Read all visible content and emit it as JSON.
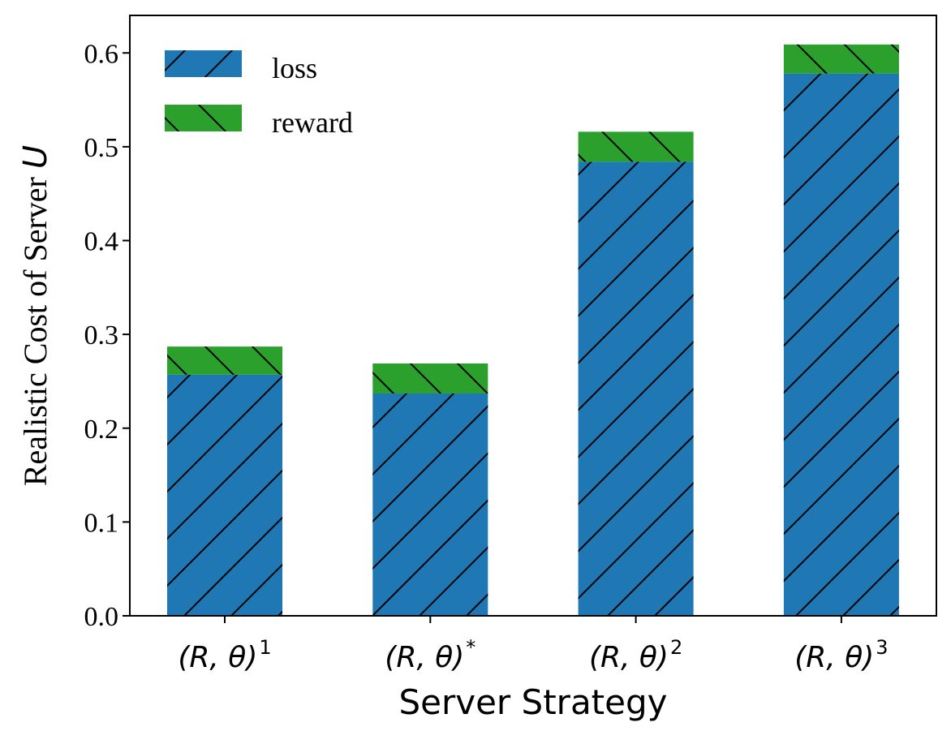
{
  "chart_data": {
    "type": "bar",
    "stacked": true,
    "categories": [
      {
        "base": "(R, θ)",
        "sup": "1"
      },
      {
        "base": "(R, θ)",
        "sup": "*"
      },
      {
        "base": "(R, θ)",
        "sup": "2"
      },
      {
        "base": "(R, θ)",
        "sup": "3"
      }
    ],
    "series": [
      {
        "name": "loss",
        "color": "#1f77b4",
        "hatch": "forward-diagonal",
        "values": [
          0.257,
          0.237,
          0.484,
          0.578
        ]
      },
      {
        "name": "reward",
        "color": "#2ca02c",
        "hatch": "backward-diagonal",
        "values": [
          0.03,
          0.032,
          0.032,
          0.031
        ]
      }
    ],
    "xlabel": "Server Strategy",
    "ylabel": {
      "text": "Realistic Cost of Server ",
      "var": "U"
    },
    "ylim": [
      0,
      0.64
    ],
    "yticks": [
      "0.0",
      "0.1",
      "0.2",
      "0.3",
      "0.4",
      "0.5",
      "0.6"
    ],
    "ytick_values": [
      0.0,
      0.1,
      0.2,
      0.3,
      0.4,
      0.5,
      0.6
    ],
    "legend": "top-left",
    "grid": false
  }
}
